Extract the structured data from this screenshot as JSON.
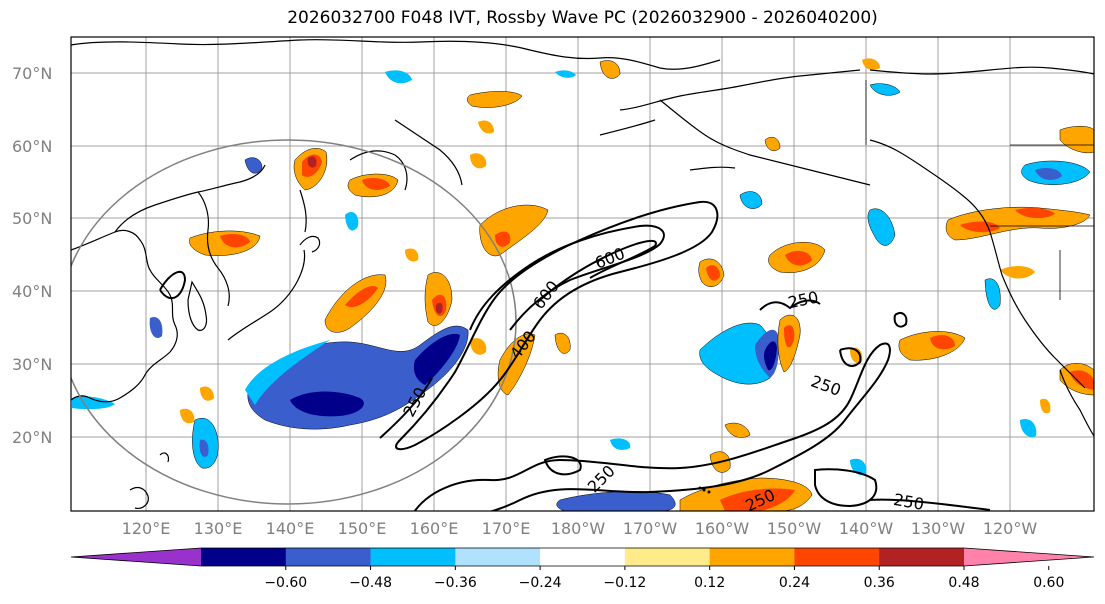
{
  "title": "2026032700 F048 IVT, Rossby Wave PC (2026032900 - 2026040200)",
  "lat_labels": [
    "70°N",
    "60°N",
    "50°N",
    "40°N",
    "30°N",
    "20°N"
  ],
  "lon_labels": [
    "120°E",
    "130°E",
    "140°E",
    "150°E",
    "160°E",
    "170°E",
    "180°W",
    "170°W",
    "160°W",
    "150°W",
    "140°W",
    "130°W",
    "120°W"
  ],
  "contour_labels": [
    "600",
    "600",
    "400",
    "250",
    "250",
    "250",
    "250",
    "250",
    "250"
  ],
  "colorbar": {
    "colors": [
      "#9932cc",
      "#00008b",
      "#3a5fcd",
      "#00bfff",
      "#b0e2ff",
      "#ffffff",
      "#ffeb8a",
      "#ffa500",
      "#ff4500",
      "#b22222",
      "#ff82ab"
    ],
    "ticks": [
      "−0.60",
      "−0.48",
      "−0.36",
      "−0.24",
      "−0.12",
      "0.12",
      "0.24",
      "0.36",
      "0.48",
      "0.60"
    ]
  },
  "colors": {
    "grid": "#a0a0a0",
    "coastline": "#000000",
    "circle": "#808080"
  }
}
